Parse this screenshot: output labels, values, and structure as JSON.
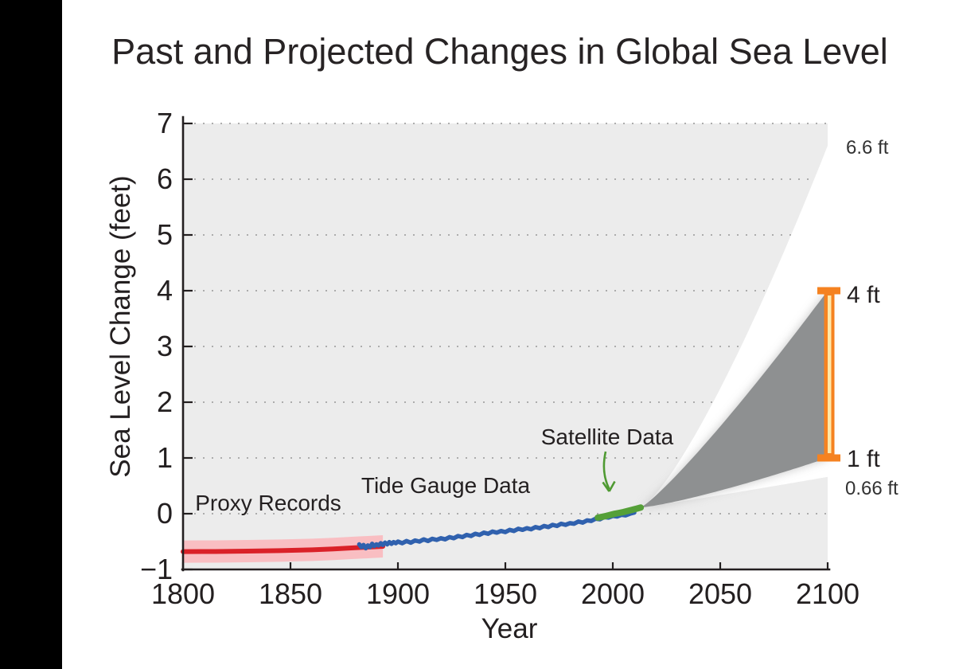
{
  "page": {
    "background": "#ffffff",
    "left_bar_color": "#000000"
  },
  "chart_data": {
    "type": "area",
    "title": "Past and Projected Changes in Global Sea Level",
    "xlabel": "Year",
    "ylabel": "Sea Level Change (feet)",
    "xlim": [
      1800,
      2100
    ],
    "ylim": [
      -1,
      7
    ],
    "xtick_values": [
      1800,
      1850,
      1900,
      1950,
      2000,
      2050,
      2100
    ],
    "xtick_labels": [
      "1800",
      "1850",
      "1900",
      "1950",
      "2000",
      "2050",
      "2100"
    ],
    "ytick_values": [
      -1,
      0,
      1,
      2,
      3,
      4,
      5,
      6,
      7
    ],
    "ytick_labels": [
      "−1",
      "0",
      "1",
      "2",
      "3",
      "4",
      "5",
      "6",
      "7"
    ],
    "grid": {
      "style": "dotted",
      "color": "#a3a3a3",
      "horizontal_at": [
        0,
        1,
        2,
        3,
        4,
        5,
        6,
        7
      ]
    },
    "plot_background": "#ececec",
    "series": [
      {
        "name": "Proxy Records",
        "type": "line_with_band",
        "color": "#da2128",
        "band_color": "#f9bec2",
        "band_halfwidth": 0.2,
        "points": [
          [
            1800,
            -0.68
          ],
          [
            1815,
            -0.678
          ],
          [
            1830,
            -0.672
          ],
          [
            1845,
            -0.663
          ],
          [
            1860,
            -0.648
          ],
          [
            1870,
            -0.633
          ],
          [
            1880,
            -0.612
          ],
          [
            1886,
            -0.6
          ],
          [
            1893,
            -0.585
          ]
        ]
      },
      {
        "name": "Tide Gauge Data",
        "type": "line",
        "color": "#3061ae",
        "points": [
          [
            1882,
            -0.55
          ],
          [
            1883,
            -0.6
          ],
          [
            1884,
            -0.56
          ],
          [
            1885,
            -0.62
          ],
          [
            1886,
            -0.57
          ],
          [
            1887,
            -0.6
          ],
          [
            1888,
            -0.54
          ],
          [
            1889,
            -0.58
          ],
          [
            1890,
            -0.55
          ],
          [
            1891,
            -0.57
          ],
          [
            1892,
            -0.53
          ],
          [
            1893,
            -0.56
          ],
          [
            1894,
            -0.52
          ],
          [
            1895,
            -0.55
          ],
          [
            1896,
            -0.51
          ],
          [
            1897,
            -0.54
          ],
          [
            1898,
            -0.51
          ],
          [
            1899,
            -0.53
          ],
          [
            1900,
            -0.5
          ],
          [
            1902,
            -0.53
          ],
          [
            1904,
            -0.49
          ],
          [
            1906,
            -0.52
          ],
          [
            1908,
            -0.48
          ],
          [
            1910,
            -0.5
          ],
          [
            1912,
            -0.46
          ],
          [
            1914,
            -0.49
          ],
          [
            1916,
            -0.45
          ],
          [
            1918,
            -0.47
          ],
          [
            1920,
            -0.44
          ],
          [
            1922,
            -0.46
          ],
          [
            1924,
            -0.42
          ],
          [
            1926,
            -0.44
          ],
          [
            1928,
            -0.4
          ],
          [
            1930,
            -0.42
          ],
          [
            1932,
            -0.38
          ],
          [
            1934,
            -0.4
          ],
          [
            1936,
            -0.36
          ],
          [
            1938,
            -0.38
          ],
          [
            1940,
            -0.34
          ],
          [
            1942,
            -0.36
          ],
          [
            1944,
            -0.32
          ],
          [
            1946,
            -0.34
          ],
          [
            1948,
            -0.31
          ],
          [
            1950,
            -0.33
          ],
          [
            1952,
            -0.29
          ],
          [
            1954,
            -0.31
          ],
          [
            1956,
            -0.27
          ],
          [
            1958,
            -0.29
          ],
          [
            1960,
            -0.26
          ],
          [
            1962,
            -0.28
          ],
          [
            1964,
            -0.24
          ],
          [
            1966,
            -0.26
          ],
          [
            1968,
            -0.22
          ],
          [
            1970,
            -0.24
          ],
          [
            1972,
            -0.2
          ],
          [
            1974,
            -0.22
          ],
          [
            1976,
            -0.18
          ],
          [
            1978,
            -0.2
          ],
          [
            1980,
            -0.17
          ],
          [
            1982,
            -0.18
          ],
          [
            1984,
            -0.14
          ],
          [
            1986,
            -0.16
          ],
          [
            1988,
            -0.12
          ],
          [
            1990,
            -0.13
          ],
          [
            1992,
            -0.09
          ],
          [
            1994,
            -0.1
          ],
          [
            1996,
            -0.06
          ],
          [
            1998,
            -0.07
          ],
          [
            2000,
            -0.04
          ],
          [
            2002,
            -0.05
          ],
          [
            2004,
            -0.02
          ],
          [
            2006,
            -0.03
          ],
          [
            2008,
            0.0
          ],
          [
            2010,
            0.02
          ]
        ]
      },
      {
        "name": "Satellite Data",
        "type": "line",
        "color": "#55a038",
        "points": [
          [
            1993,
            -0.07
          ],
          [
            1995,
            -0.055
          ],
          [
            1997,
            -0.04
          ],
          [
            1999,
            -0.02
          ],
          [
            2001,
            0.0
          ],
          [
            2003,
            0.015
          ],
          [
            2005,
            0.03
          ],
          [
            2007,
            0.05
          ],
          [
            2009,
            0.07
          ],
          [
            2011,
            0.09
          ],
          [
            2013,
            0.11
          ]
        ]
      }
    ],
    "projection": {
      "start_year": 2013,
      "start_value": 0.11,
      "end_year": 2100,
      "outer_band": {
        "top_end_value": 6.6,
        "bottom_end_value": 0.66,
        "color": "#ffffff",
        "top_curve_exponent": 1.3,
        "bottom_curve_exponent": 1.05
      },
      "inner_band": {
        "top_end_value": 4,
        "bottom_end_value": 1,
        "color": "#8e9091",
        "top_curve_exponent": 1.15,
        "bottom_curve_exponent": 1.25
      }
    },
    "range_bracket": {
      "from_value": 1,
      "to_value": 4,
      "color": "#f58220",
      "inner_color": "#ffe8a9"
    },
    "annotations": {
      "proxy_label": "Proxy Records",
      "proxy_color": "#e8232a",
      "tide_label": "Tide Gauge Data",
      "tide_color": "#3061ae",
      "satellite_label": "Satellite Data",
      "satellite_color": "#4f9a32",
      "upper_outer_label": "6.6 ft",
      "upper_inner_label": "4 ft",
      "lower_inner_label": "1 ft",
      "lower_outer_label": "0.66 ft",
      "side_label_color": "#333333",
      "orange_label_color": "#f47b20"
    }
  }
}
